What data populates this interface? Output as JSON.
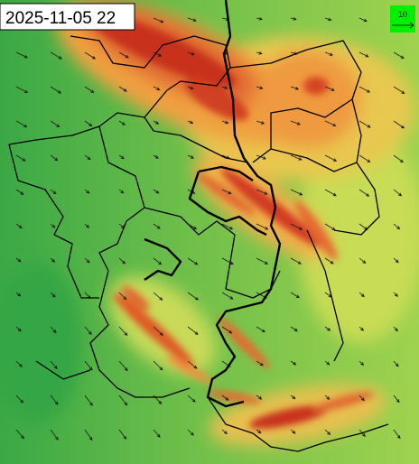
{
  "timestamp": "2025-11-05 22",
  "wind_legend": {
    "label": "10"
  }
}
